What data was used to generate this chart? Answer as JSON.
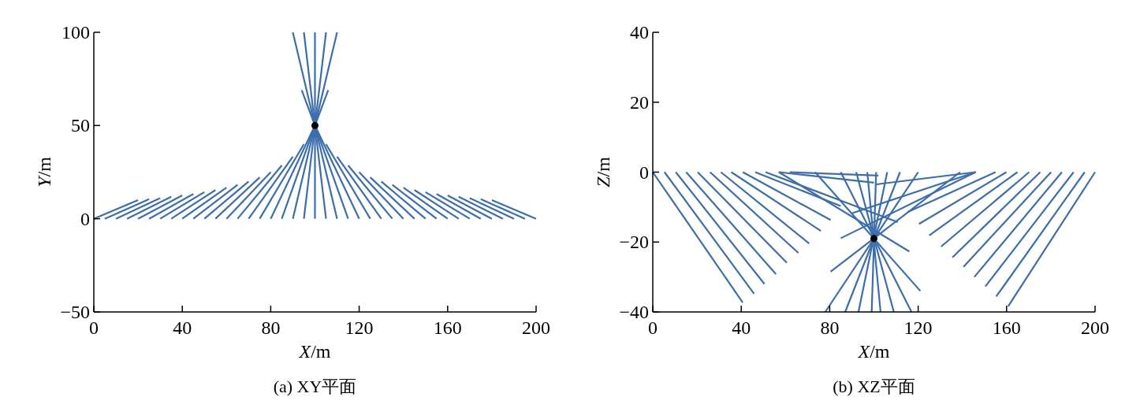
{
  "chart_data": [
    {
      "type": "line",
      "title": "(a) XY平面",
      "xlabel": "*X*/m",
      "ylabel": "*Y*/m",
      "xlim": [
        0,
        200
      ],
      "ylim": [
        -50,
        100
      ],
      "xticks": [
        0,
        40,
        80,
        120,
        160,
        200
      ],
      "yticks": [
        {
          "value": -50,
          "label": "−50"
        },
        0,
        50,
        100
      ],
      "series": [
        {
          "color": "#3d6eaa",
          "x": [
            0,
            20
          ],
          "values": [
            0,
            10
          ]
        },
        {
          "color": "#3d6eaa",
          "x": [
            5,
            25
          ],
          "values": [
            0,
            10.5
          ]
        },
        {
          "color": "#3d6eaa",
          "x": [
            10,
            30
          ],
          "values": [
            0,
            11.1
          ]
        },
        {
          "color": "#3d6eaa",
          "x": [
            15,
            35
          ],
          "values": [
            0,
            11.8
          ]
        },
        {
          "color": "#3d6eaa",
          "x": [
            20,
            40
          ],
          "values": [
            0,
            12.5
          ]
        },
        {
          "color": "#3d6eaa",
          "x": [
            25,
            45
          ],
          "values": [
            0,
            13.3
          ]
        },
        {
          "color": "#3d6eaa",
          "x": [
            30,
            50
          ],
          "values": [
            0,
            14.3
          ]
        },
        {
          "color": "#3d6eaa",
          "x": [
            35,
            55
          ],
          "values": [
            0,
            15.4
          ]
        },
        {
          "color": "#3d6eaa",
          "x": [
            40,
            60
          ],
          "values": [
            0,
            16.7
          ]
        },
        {
          "color": "#3d6eaa",
          "x": [
            45,
            65
          ],
          "values": [
            0,
            18.2
          ]
        },
        {
          "color": "#3d6eaa",
          "x": [
            50,
            70
          ],
          "values": [
            0,
            20
          ]
        },
        {
          "color": "#3d6eaa",
          "x": [
            55,
            75
          ],
          "values": [
            0,
            22.2
          ]
        },
        {
          "color": "#3d6eaa",
          "x": [
            60,
            80
          ],
          "values": [
            0,
            25
          ]
        },
        {
          "color": "#3d6eaa",
          "x": [
            65,
            85
          ],
          "values": [
            0,
            28.6
          ]
        },
        {
          "color": "#3d6eaa",
          "x": [
            70,
            90
          ],
          "values": [
            0,
            33.3
          ]
        },
        {
          "color": "#3d6eaa",
          "x": [
            75,
            95
          ],
          "values": [
            0,
            40
          ]
        },
        {
          "color": "#3d6eaa",
          "x": [
            80,
            100
          ],
          "values": [
            0,
            50
          ]
        },
        {
          "color": "#3d6eaa",
          "x": [
            85,
            100
          ],
          "values": [
            0,
            50
          ]
        },
        {
          "color": "#3d6eaa",
          "x": [
            90,
            100
          ],
          "values": [
            0,
            50
          ]
        },
        {
          "color": "#3d6eaa",
          "x": [
            95,
            100
          ],
          "values": [
            0,
            50
          ]
        },
        {
          "color": "#3d6eaa",
          "x": [
            100,
            100
          ],
          "values": [
            0,
            50
          ]
        },
        {
          "color": "#3d6eaa",
          "x": [
            105,
            100
          ],
          "values": [
            0,
            50
          ]
        },
        {
          "color": "#3d6eaa",
          "x": [
            110,
            100
          ],
          "values": [
            0,
            50
          ]
        },
        {
          "color": "#3d6eaa",
          "x": [
            115,
            100
          ],
          "values": [
            0,
            50
          ]
        },
        {
          "color": "#3d6eaa",
          "x": [
            120,
            100
          ],
          "values": [
            0,
            50
          ]
        },
        {
          "color": "#3d6eaa",
          "x": [
            125,
            105
          ],
          "values": [
            0,
            40
          ]
        },
        {
          "color": "#3d6eaa",
          "x": [
            130,
            110
          ],
          "values": [
            0,
            33.3
          ]
        },
        {
          "color": "#3d6eaa",
          "x": [
            135,
            115
          ],
          "values": [
            0,
            28.6
          ]
        },
        {
          "color": "#3d6eaa",
          "x": [
            140,
            120
          ],
          "values": [
            0,
            25
          ]
        },
        {
          "color": "#3d6eaa",
          "x": [
            145,
            125
          ],
          "values": [
            0,
            22.2
          ]
        },
        {
          "color": "#3d6eaa",
          "x": [
            150,
            130
          ],
          "values": [
            0,
            20
          ]
        },
        {
          "color": "#3d6eaa",
          "x": [
            155,
            135
          ],
          "values": [
            0,
            18.2
          ]
        },
        {
          "color": "#3d6eaa",
          "x": [
            160,
            140
          ],
          "values": [
            0,
            16.7
          ]
        },
        {
          "color": "#3d6eaa",
          "x": [
            165,
            145
          ],
          "values": [
            0,
            15.4
          ]
        },
        {
          "color": "#3d6eaa",
          "x": [
            170,
            150
          ],
          "values": [
            0,
            14.3
          ]
        },
        {
          "color": "#3d6eaa",
          "x": [
            175,
            155
          ],
          "values": [
            0,
            13.3
          ]
        },
        {
          "color": "#3d6eaa",
          "x": [
            180,
            160
          ],
          "values": [
            0,
            12.5
          ]
        },
        {
          "color": "#3d6eaa",
          "x": [
            185,
            165
          ],
          "values": [
            0,
            11.8
          ]
        },
        {
          "color": "#3d6eaa",
          "x": [
            190,
            170
          ],
          "values": [
            0,
            11.1
          ]
        },
        {
          "color": "#3d6eaa",
          "x": [
            195,
            175
          ],
          "values": [
            0,
            10.5
          ]
        },
        {
          "color": "#3d6eaa",
          "x": [
            200,
            180
          ],
          "values": [
            0,
            10
          ]
        },
        {
          "color": "#3d6eaa",
          "x": [
            100,
            90
          ],
          "values": [
            50,
            100
          ]
        },
        {
          "color": "#3d6eaa",
          "x": [
            100,
            95
          ],
          "values": [
            50,
            100
          ]
        },
        {
          "color": "#3d6eaa",
          "x": [
            100,
            100
          ],
          "values": [
            50,
            100
          ]
        },
        {
          "color": "#3d6eaa",
          "x": [
            100,
            105
          ],
          "values": [
            50,
            100
          ]
        },
        {
          "color": "#3d6eaa",
          "x": [
            100,
            110
          ],
          "values": [
            50,
            100
          ]
        },
        {
          "color": "#3d6eaa",
          "x": [
            100,
            94
          ],
          "values": [
            50,
            69
          ]
        },
        {
          "color": "#3d6eaa",
          "x": [
            100,
            106
          ],
          "values": [
            50,
            69
          ]
        },
        {
          "type": "scatter",
          "marker": "circle",
          "color": "#000000",
          "x": [
            100
          ],
          "values": [
            50
          ]
        }
      ]
    },
    {
      "type": "line",
      "title": "(b) XZ平面",
      "xlabel": "*X*/m",
      "ylabel": "*Z*/m",
      "xlim": [
        0,
        200
      ],
      "ylim": [
        -40,
        40
      ],
      "xticks": [
        0,
        40,
        80,
        120,
        160,
        200
      ],
      "yticks": [
        {
          "value": -40,
          "label": "−40"
        },
        {
          "value": -20,
          "label": "−20"
        },
        0,
        20,
        40
      ],
      "series": [
        {
          "color": "#3d6eaa",
          "x": [
            0,
            40.7
          ],
          "values": [
            0,
            -37.3
          ]
        },
        {
          "color": "#3d6eaa",
          "x": [
            5.3,
            45.8
          ],
          "values": [
            0,
            -34.8
          ]
        },
        {
          "color": "#3d6eaa",
          "x": [
            10.4,
            50.5
          ],
          "values": [
            0,
            -32
          ]
        },
        {
          "color": "#3d6eaa",
          "x": [
            15.1,
            55.7
          ],
          "values": [
            0,
            -29.2
          ]
        },
        {
          "color": "#3d6eaa",
          "x": [
            20.3,
            60.6
          ],
          "values": [
            0,
            -25.9
          ]
        },
        {
          "color": "#3d6eaa",
          "x": [
            25.9,
            65.8
          ],
          "values": [
            0,
            -23.1
          ]
        },
        {
          "color": "#3d6eaa",
          "x": [
            30.8,
            70.7
          ],
          "values": [
            0,
            -20.4
          ]
        },
        {
          "color": "#3d6eaa",
          "x": [
            35.5,
            76
          ],
          "values": [
            0,
            -16.8
          ]
        },
        {
          "color": "#3d6eaa",
          "x": [
            40.7,
            80.4
          ],
          "values": [
            0,
            -13.7
          ]
        },
        {
          "color": "#3d6eaa",
          "x": [
            46.3,
            85
          ],
          "values": [
            0,
            -9.7
          ]
        },
        {
          "color": "#3d6eaa",
          "x": [
            200,
            160.7
          ],
          "values": [
            0,
            -38.4
          ]
        },
        {
          "color": "#3d6eaa",
          "x": [
            195.3,
            155.3
          ],
          "values": [
            0,
            -35.6
          ]
        },
        {
          "color": "#3d6eaa",
          "x": [
            190.3,
            150.4
          ],
          "values": [
            0,
            -32.7
          ]
        },
        {
          "color": "#3d6eaa",
          "x": [
            185,
            145.4
          ],
          "values": [
            0,
            -30
          ]
        },
        {
          "color": "#3d6eaa",
          "x": [
            180.1,
            140.5
          ],
          "values": [
            0,
            -27.1
          ]
        },
        {
          "color": "#3d6eaa",
          "x": [
            175.2,
            135.5
          ],
          "values": [
            0,
            -24.4
          ]
        },
        {
          "color": "#3d6eaa",
          "x": [
            170.2,
            130.4
          ],
          "values": [
            0,
            -21.3
          ]
        },
        {
          "color": "#3d6eaa",
          "x": [
            164.9,
            125
          ],
          "values": [
            0,
            -18.1
          ]
        },
        {
          "color": "#3d6eaa",
          "x": [
            159.9,
            120.4
          ],
          "values": [
            0,
            -14.8
          ]
        },
        {
          "color": "#3d6eaa",
          "x": [
            155,
            115.4
          ],
          "values": [
            0,
            -11.4
          ]
        },
        {
          "color": "#3d6eaa",
          "x": [
            51,
            110.8
          ],
          "values": [
            0,
            -14.3
          ]
        },
        {
          "color": "#3d6eaa",
          "x": [
            57,
            116
          ],
          "values": [
            0,
            -22.7
          ]
        },
        {
          "color": "#3d6eaa",
          "x": [
            57,
            100
          ],
          "values": [
            0,
            -3
          ]
        },
        {
          "color": "#3d6eaa",
          "x": [
            62,
            102
          ],
          "values": [
            0,
            -1
          ]
        },
        {
          "color": "#3d6eaa",
          "x": [
            146,
            101
          ],
          "values": [
            0,
            -3.5
          ]
        },
        {
          "color": "#3d6eaa",
          "x": [
            146,
            90.3
          ],
          "values": [
            0,
            -11.7
          ]
        },
        {
          "color": "#3d6eaa",
          "x": [
            146,
            85
          ],
          "values": [
            0,
            -18.9
          ]
        },
        {
          "color": "#3d6eaa",
          "x": [
            120,
            78
          ],
          "values": [
            0,
            -40
          ]
        },
        {
          "color": "#3d6eaa",
          "x": [
            111.8,
            87
          ],
          "values": [
            0,
            -40
          ]
        },
        {
          "color": "#3d6eaa",
          "x": [
            106,
            93
          ],
          "values": [
            0,
            -40
          ]
        },
        {
          "color": "#3d6eaa",
          "x": [
            101,
            99
          ],
          "values": [
            0,
            -40
          ]
        },
        {
          "color": "#3d6eaa",
          "x": [
            97,
            103
          ],
          "values": [
            0,
            -40
          ]
        },
        {
          "color": "#3d6eaa",
          "x": [
            92,
            109
          ],
          "values": [
            0,
            -40
          ]
        },
        {
          "color": "#3d6eaa",
          "x": [
            85,
            117
          ],
          "values": [
            0,
            -40
          ]
        },
        {
          "color": "#3d6eaa",
          "x": [
            139,
            80.4
          ],
          "values": [
            0,
            -28.5
          ]
        },
        {
          "color": "#3d6eaa",
          "x": [
            73.4,
            121
          ],
          "values": [
            0,
            -34
          ]
        },
        {
          "type": "scatter",
          "marker": "circle",
          "color": "#000000",
          "x": [
            100
          ],
          "values": [
            -19
          ]
        }
      ]
    }
  ]
}
